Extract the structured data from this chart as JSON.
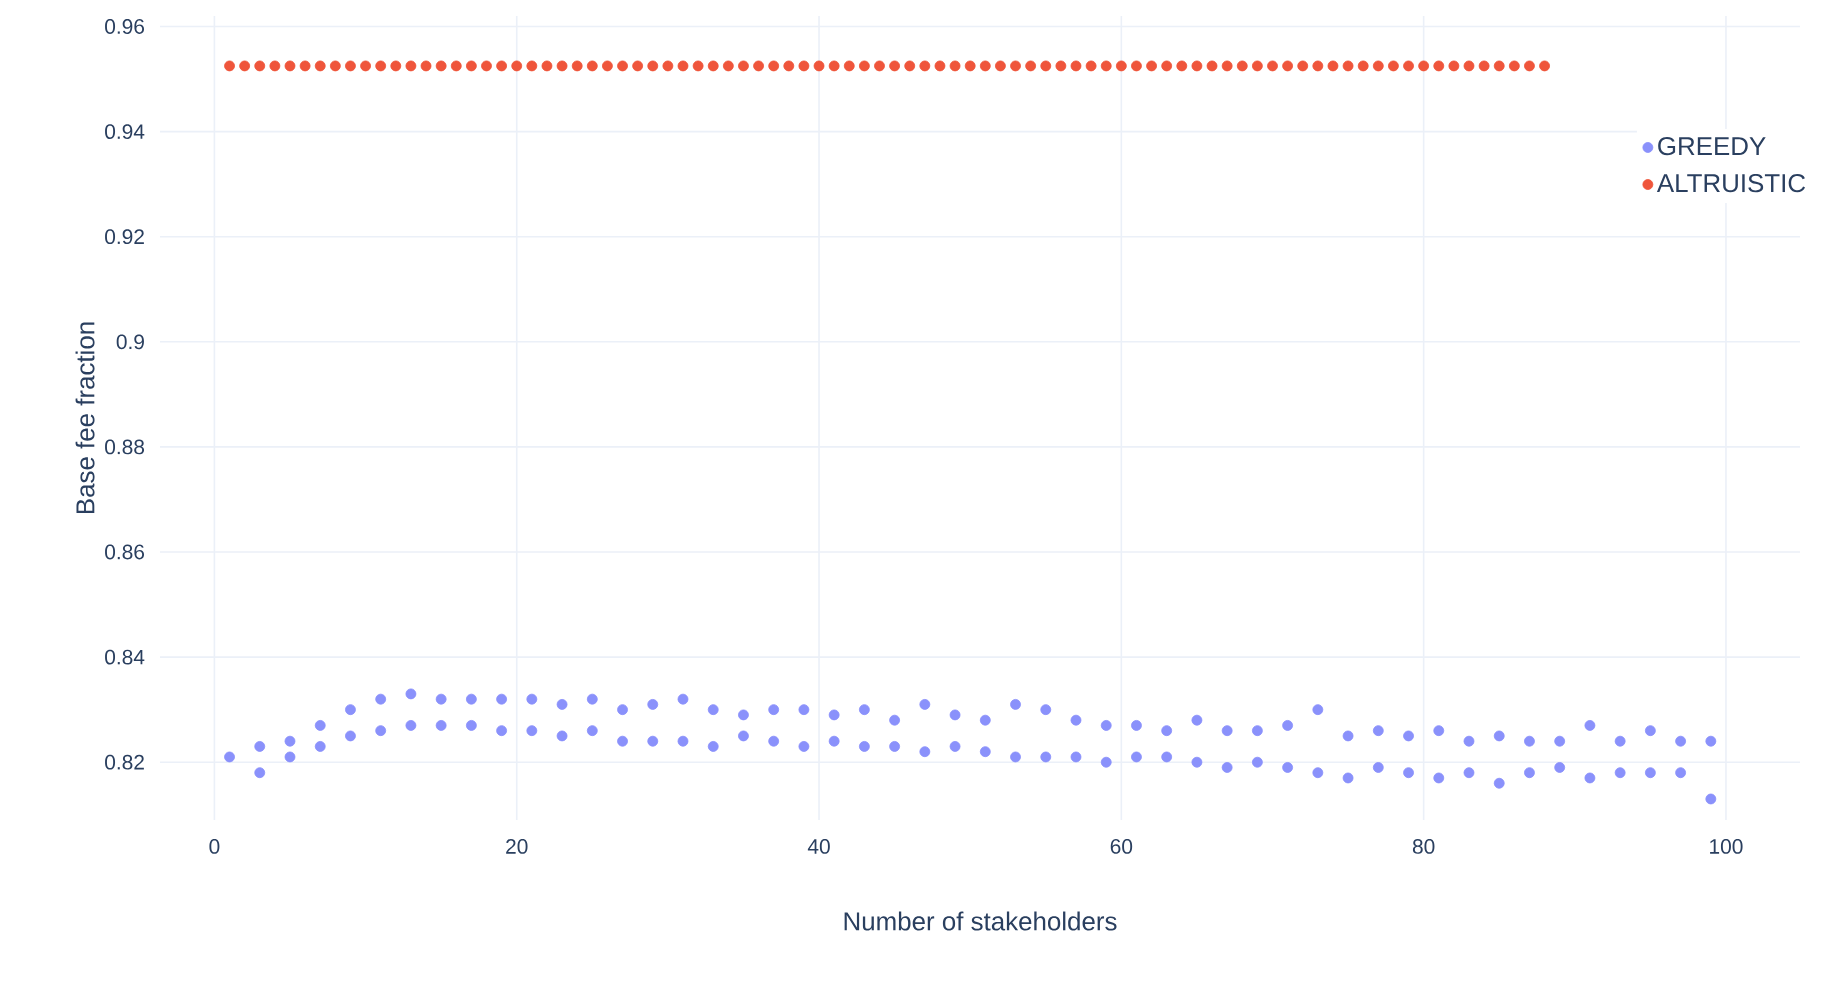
{
  "chart_data": {
    "type": "scatter",
    "xlabel": "Number of stakeholders",
    "ylabel": "Base fee fraction",
    "xlim": [
      -3.6,
      104.9
    ],
    "ylim": [
      0.809,
      0.962
    ],
    "xticks": [
      0,
      20,
      40,
      60,
      80,
      100
    ],
    "yticks": [
      0.82,
      0.84,
      0.86,
      0.88,
      {
        "value": 0.9,
        "label": "0.9"
      },
      0.92,
      0.94,
      0.96
    ],
    "grid": true,
    "legend": "top right",
    "series": [
      {
        "name": "GREEDY",
        "color": "#8a91fb",
        "x": [
          1,
          3,
          3,
          5,
          5,
          7,
          7,
          9,
          9,
          11,
          11,
          13,
          13,
          15,
          15,
          17,
          17,
          19,
          19,
          21,
          21,
          23,
          23,
          25,
          25,
          27,
          27,
          29,
          29,
          31,
          31,
          33,
          33,
          35,
          35,
          37,
          37,
          39,
          39,
          41,
          41,
          43,
          43,
          45,
          45,
          47,
          47,
          49,
          49,
          51,
          51,
          53,
          53,
          55,
          55,
          57,
          57,
          59,
          59,
          61,
          61,
          63,
          63,
          65,
          65,
          67,
          67,
          69,
          69,
          71,
          71,
          73,
          73,
          75,
          75,
          77,
          77,
          79,
          79,
          81,
          81,
          83,
          83,
          85,
          85,
          87,
          87,
          89,
          89,
          91,
          91,
          93,
          93,
          95,
          95,
          97,
          97,
          99,
          99
        ],
        "values": [
          0.821,
          0.818,
          0.823,
          0.821,
          0.824,
          0.823,
          0.827,
          0.825,
          0.83,
          0.826,
          0.832,
          0.827,
          0.833,
          0.827,
          0.832,
          0.827,
          0.832,
          0.826,
          0.832,
          0.826,
          0.832,
          0.825,
          0.831,
          0.826,
          0.832,
          0.824,
          0.83,
          0.824,
          0.831,
          0.824,
          0.832,
          0.823,
          0.83,
          0.825,
          0.829,
          0.824,
          0.83,
          0.823,
          0.83,
          0.824,
          0.829,
          0.823,
          0.83,
          0.823,
          0.828,
          0.822,
          0.831,
          0.823,
          0.829,
          0.822,
          0.828,
          0.821,
          0.831,
          0.821,
          0.83,
          0.821,
          0.828,
          0.82,
          0.827,
          0.821,
          0.827,
          0.821,
          0.826,
          0.82,
          0.828,
          0.819,
          0.826,
          0.82,
          0.826,
          0.819,
          0.827,
          0.818,
          0.83,
          0.817,
          0.825,
          0.819,
          0.826,
          0.818,
          0.825,
          0.817,
          0.826,
          0.818,
          0.824,
          0.816,
          0.825,
          0.818,
          0.824,
          0.819,
          0.824,
          0.817,
          0.827,
          0.818,
          0.824,
          0.818,
          0.826,
          0.818,
          0.824,
          0.813,
          0.824
        ]
      },
      {
        "name": "ALTRUISTIC",
        "color": "#ef553b",
        "x": [
          1,
          2,
          3,
          4,
          5,
          6,
          7,
          8,
          9,
          10,
          11,
          12,
          13,
          14,
          15,
          16,
          17,
          18,
          19,
          20,
          21,
          22,
          23,
          24,
          25,
          26,
          27,
          28,
          29,
          30,
          31,
          32,
          33,
          34,
          35,
          36,
          37,
          38,
          39,
          40,
          41,
          42,
          43,
          44,
          45,
          46,
          47,
          48,
          49,
          50,
          51,
          52,
          53,
          54,
          55,
          56,
          57,
          58,
          59,
          60,
          61,
          62,
          63,
          64,
          65,
          66,
          67,
          68,
          69,
          70,
          71,
          72,
          73,
          74,
          75,
          76,
          77,
          78,
          79,
          80,
          81,
          82,
          83,
          84,
          85,
          86,
          87,
          88
        ],
        "values": [
          0.9525,
          0.9525,
          0.9525,
          0.9525,
          0.9525,
          0.9525,
          0.9525,
          0.9525,
          0.9525,
          0.9525,
          0.9525,
          0.9525,
          0.9525,
          0.9525,
          0.9525,
          0.9525,
          0.9525,
          0.9525,
          0.9525,
          0.9525,
          0.9525,
          0.9525,
          0.9525,
          0.9525,
          0.9525,
          0.9525,
          0.9525,
          0.9525,
          0.9525,
          0.9525,
          0.9525,
          0.9525,
          0.9525,
          0.9525,
          0.9525,
          0.9525,
          0.9525,
          0.9525,
          0.9525,
          0.9525,
          0.9525,
          0.9525,
          0.9525,
          0.9525,
          0.9525,
          0.9525,
          0.9525,
          0.9525,
          0.9525,
          0.9525,
          0.9525,
          0.9525,
          0.9525,
          0.9525,
          0.9525,
          0.9525,
          0.9525,
          0.9525,
          0.9525,
          0.9525,
          0.9525,
          0.9525,
          0.9525,
          0.9525,
          0.9525,
          0.9525,
          0.9525,
          0.9525,
          0.9525,
          0.9525,
          0.9525,
          0.9525,
          0.9525,
          0.9525,
          0.9525,
          0.9525,
          0.9525,
          0.9525,
          0.9525,
          0.9525,
          0.9525,
          0.9525,
          0.9525,
          0.9525,
          0.9525,
          0.9525,
          0.9525,
          0.9525
        ]
      }
    ]
  }
}
